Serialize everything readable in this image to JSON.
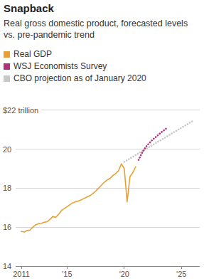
{
  "chart_data": {
    "type": "line",
    "title": "Snapback",
    "subtitle": "Real gross domestic product, forecasted levels vs. pre-pandemic trend",
    "xlim": [
      2010.5,
      2026.6
    ],
    "xticks": [
      2011,
      {
        "value": 2015,
        "label": "'15"
      },
      {
        "value": 2020,
        "label": "'20"
      },
      {
        "value": 2025,
        "label": "'25"
      }
    ],
    "ylim": [
      14,
      22
    ],
    "yticks": [
      14,
      16,
      18,
      20,
      {
        "value": 22,
        "label": "$22 trillion"
      }
    ],
    "grid": true,
    "legend": "top-left",
    "series": [
      {
        "name": "Real GDP",
        "color": "#e8a032",
        "line_style": "solid",
        "x": [
          2011.0,
          2011.25,
          2011.5,
          2011.75,
          2012.0,
          2012.25,
          2012.5,
          2012.75,
          2013.0,
          2013.25,
          2013.5,
          2013.75,
          2014.0,
          2014.25,
          2014.5,
          2014.75,
          2015.0,
          2015.25,
          2015.5,
          2015.75,
          2016.0,
          2016.25,
          2016.5,
          2016.75,
          2017.0,
          2017.25,
          2017.5,
          2017.75,
          2018.0,
          2018.25,
          2018.5,
          2018.75,
          2019.0,
          2019.25,
          2019.5,
          2019.75,
          2020.0,
          2020.25,
          2020.5,
          2020.75,
          2021.0
        ],
        "values": [
          15.78,
          15.75,
          15.83,
          15.85,
          16.0,
          16.12,
          16.18,
          16.2,
          16.25,
          16.28,
          16.4,
          16.55,
          16.5,
          16.65,
          16.85,
          16.95,
          17.05,
          17.15,
          17.25,
          17.3,
          17.35,
          17.4,
          17.48,
          17.55,
          17.62,
          17.72,
          17.85,
          18.0,
          18.15,
          18.3,
          18.42,
          18.5,
          18.65,
          18.75,
          18.9,
          19.25,
          19.0,
          17.3,
          18.6,
          18.8,
          19.1
        ]
      },
      {
        "name": "WSJ Economists Survey",
        "color": "#b3307c",
        "line_style": "dotted",
        "x": [
          2021.25,
          2021.5,
          2021.75,
          2022.0,
          2022.25,
          2022.5,
          2022.75,
          2023.0,
          2023.25,
          2023.5,
          2023.75
        ],
        "values": [
          19.45,
          19.75,
          20.0,
          20.2,
          20.35,
          20.5,
          20.62,
          20.75,
          20.87,
          20.98,
          21.1
        ]
      },
      {
        "name": "CBO projection as of January 2020",
        "color": "#c8c8c8",
        "line_style": "dotted",
        "x": [
          2020.0,
          2021.0,
          2022.0,
          2023.0,
          2024.0,
          2025.0,
          2026.0
        ],
        "values": [
          19.35,
          19.7,
          20.05,
          20.4,
          20.75,
          21.1,
          21.45
        ]
      }
    ]
  }
}
